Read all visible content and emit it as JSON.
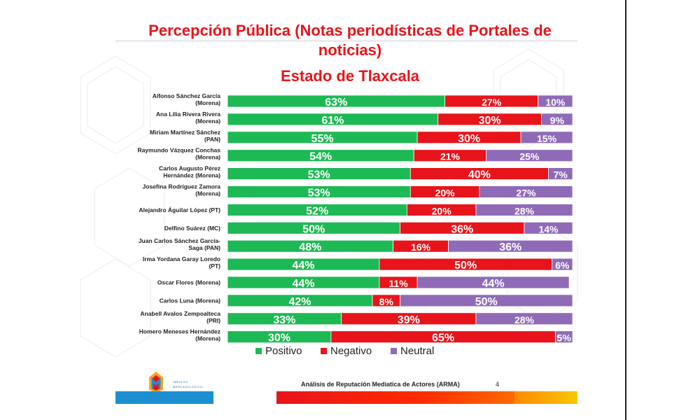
{
  "header": {
    "title_line1": "Percepción Pública (Notas periodísticas de Portales de",
    "title_line2": "noticias)",
    "subtitle": "Estado de Tlaxcala"
  },
  "footer": {
    "report": "Análisis de Reputación Mediatica de Actores (ARMA)",
    "page": "4",
    "logo_line1": "IMPULSO",
    "logo_line2": "MERCADOLOGICO"
  },
  "colors": {
    "positivo": "#1db954",
    "negativo": "#e8141b",
    "neutral": "#8f6bb7",
    "title": "#e8141b"
  },
  "chart_data": {
    "type": "bar",
    "orientation": "horizontal",
    "stacked": true,
    "percent": true,
    "categories": [
      [
        "Alfonso Sánchez García",
        "(Morena)"
      ],
      [
        "Ana Lilia Rivera Rivera",
        "(Morena)"
      ],
      [
        "Miriam Martínez Sánchez",
        "(PAN)"
      ],
      [
        "Raymundo Vázquez Conchas",
        "(Morena)"
      ],
      [
        "Carlos Augusto Pérez",
        "Hernández (Morena)"
      ],
      [
        "Josefina Rodríguez Zamora",
        "(Morena)"
      ],
      [
        "Alejandro Águilar López (PT)"
      ],
      [
        "Delfino Suárez (MC)"
      ],
      [
        "Juan Carlos Sánchez García-",
        "Saga (PAN)"
      ],
      [
        "Irma Yordana Garay Loredo",
        "(PT)"
      ],
      [
        "Oscar Flores (Morena)"
      ],
      [
        "Carlos Luna (Morena)"
      ],
      [
        "Anabell Avalos Zempoalteca",
        "(PRI)"
      ],
      [
        "Homero Meneses Hernández",
        "(Morena)"
      ]
    ],
    "series": [
      {
        "name": "Positivo",
        "values": [
          63,
          61,
          55,
          54,
          53,
          53,
          52,
          50,
          48,
          44,
          44,
          42,
          33,
          30
        ]
      },
      {
        "name": "Negativo",
        "values": [
          27,
          30,
          30,
          21,
          40,
          20,
          20,
          36,
          16,
          50,
          11,
          8,
          39,
          65
        ]
      },
      {
        "name": "Neutral",
        "values": [
          10,
          9,
          15,
          25,
          7,
          27,
          28,
          14,
          36,
          6,
          44,
          50,
          28,
          5
        ]
      }
    ],
    "legend": {
      "position": "bottom",
      "labels": [
        "Positivo",
        "Negativo",
        "Neutral"
      ]
    },
    "grid": false
  }
}
